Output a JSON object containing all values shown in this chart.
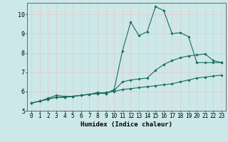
{
  "x": [
    0,
    1,
    2,
    3,
    4,
    5,
    6,
    7,
    8,
    9,
    10,
    11,
    12,
    13,
    14,
    15,
    16,
    17,
    18,
    19,
    20,
    21,
    22,
    23
  ],
  "line1": [
    5.4,
    5.5,
    5.6,
    5.7,
    5.7,
    5.75,
    5.8,
    5.85,
    5.9,
    5.9,
    6.05,
    6.5,
    6.6,
    6.65,
    6.7,
    7.1,
    7.4,
    7.6,
    7.75,
    7.85,
    7.9,
    7.95,
    7.6,
    7.5
  ],
  "line2": [
    5.4,
    5.5,
    5.65,
    5.8,
    5.75,
    5.75,
    5.8,
    5.85,
    5.95,
    5.9,
    6.1,
    8.1,
    9.6,
    8.9,
    9.1,
    10.4,
    10.2,
    9.0,
    9.05,
    8.85,
    7.5,
    7.5,
    7.5,
    7.5
  ],
  "line3": [
    5.4,
    5.5,
    5.6,
    5.7,
    5.7,
    5.75,
    5.8,
    5.85,
    5.9,
    5.95,
    6.0,
    6.1,
    6.15,
    6.2,
    6.25,
    6.3,
    6.35,
    6.4,
    6.5,
    6.6,
    6.7,
    6.75,
    6.8,
    6.85
  ],
  "color": "#1a6b5e",
  "bg_color": "#cce8e8",
  "grid_color": "#e8c8c8",
  "xlabel": "Humidex (Indice chaleur)",
  "xlim": [
    -0.5,
    23.5
  ],
  "ylim": [
    5.0,
    10.6
  ],
  "yticks": [
    5,
    6,
    7,
    8,
    9,
    10
  ],
  "xticks": [
    0,
    1,
    2,
    3,
    4,
    5,
    6,
    7,
    8,
    9,
    10,
    11,
    12,
    13,
    14,
    15,
    16,
    17,
    18,
    19,
    20,
    21,
    22,
    23
  ],
  "marker": "D",
  "markersize": 1.8,
  "linewidth": 0.8,
  "tick_fontsize": 5.5,
  "xlabel_fontsize": 6.5
}
